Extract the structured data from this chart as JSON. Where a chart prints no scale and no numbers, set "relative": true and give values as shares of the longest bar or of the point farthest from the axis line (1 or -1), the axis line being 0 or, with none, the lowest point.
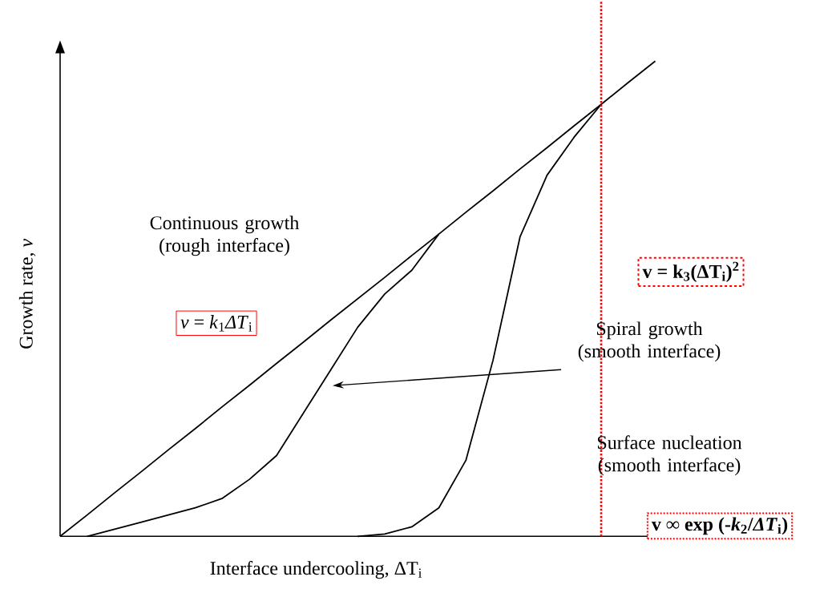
{
  "chart_data": {
    "type": "line",
    "relative": true,
    "xlabel": "Interface undercooling, ΔT$_{i}$",
    "ylabel": "Growth rate, *v*",
    "categories": [
      null,
      null,
      null,
      null,
      null,
      null,
      null,
      null,
      null,
      null,
      null,
      null,
      null,
      null,
      null,
      null,
      null,
      null,
      null,
      null,
      null,
      null,
      null
    ],
    "marker": "none",
    "line_style": "solid",
    "series": [
      {
        "color": "#000000",
        "values": [
          0,
          0.045,
          0.091,
          0.136,
          0.182,
          0.227,
          0.273,
          0.318,
          0.364,
          0.409,
          0.455,
          0.5,
          0.545,
          0.591,
          0.636,
          0.682,
          0.727,
          0.773,
          0.818,
          0.864,
          0.909,
          0.955,
          1
        ]
      },
      {
        "color": "#000000",
        "values": [
          null,
          0,
          0.015,
          0.03,
          0.045,
          0.06,
          0.08,
          0.12,
          0.17,
          0.26,
          0.35,
          0.44,
          0.51,
          0.56,
          0.636,
          null,
          null,
          null,
          null,
          null,
          null,
          null,
          null
        ]
      },
      {
        "color": "#000000",
        "values": [
          null,
          null,
          null,
          null,
          null,
          null,
          null,
          null,
          null,
          null,
          null,
          0,
          0.005,
          0.02,
          0.06,
          0.16,
          0.37,
          0.63,
          0.76,
          0.84,
          0.909,
          null,
          null
        ]
      }
    ],
    "annotations": [
      "Continuous growth (rough interface)",
      "*v* = *k*$_{1}$*ΔT*$_{i}$",
      "Spiral growth (smooth interface)",
      "Surface nucleation (smooth interface)",
      "**v = k$_{3}$(ΔT$_{i}$)$^{2}$**",
      "**v ∞ exp (-*k*$_{2}$/*ΔT*$_{i}$)**"
    ]
  }
}
